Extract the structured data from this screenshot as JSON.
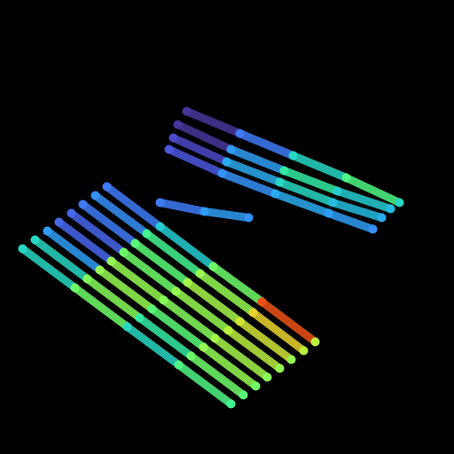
{
  "chart_data": {
    "type": "line",
    "tick_labels": false,
    "grid": false,
    "xlim": [
      0,
      512
    ],
    "ylim": [
      512,
      0
    ],
    "zlim": [
      0,
      1
    ],
    "series": [
      {
        "x": [
          120,
          180,
          240,
          295,
          355
        ],
        "y": [
          210,
          255,
          300,
          340,
          385
        ],
        "z": [
          0.15,
          0.28,
          0.45,
          0.82,
          0.55
        ]
      },
      {
        "x": [
          107,
          165,
          225,
          285,
          342
        ],
        "y": [
          220,
          263,
          308,
          352,
          395
        ],
        "z": [
          0.18,
          0.38,
          0.5,
          0.62,
          0.55
        ]
      },
      {
        "x": [
          93,
          152,
          211,
          270,
          328
        ],
        "y": [
          230,
          274,
          318,
          362,
          405
        ],
        "z": [
          0.15,
          0.42,
          0.52,
          0.58,
          0.5
        ]
      },
      {
        "x": [
          80,
          139,
          198,
          257,
          315
        ],
        "y": [
          240,
          284,
          328,
          372,
          415
        ],
        "z": [
          0.12,
          0.45,
          0.5,
          0.55,
          0.5
        ]
      },
      {
        "x": [
          66,
          125,
          184,
          242,
          301
        ],
        "y": [
          250,
          294,
          338,
          381,
          425
        ],
        "z": [
          0.12,
          0.5,
          0.48,
          0.52,
          0.48
        ]
      },
      {
        "x": [
          53,
          112,
          171,
          229,
          288
        ],
        "y": [
          260,
          304,
          348,
          391,
          435
        ],
        "z": [
          0.2,
          0.5,
          0.42,
          0.5,
          0.45
        ]
      },
      {
        "x": [
          39,
          98,
          157,
          215,
          274
        ],
        "y": [
          270,
          314,
          358,
          401,
          445
        ],
        "z": [
          0.3,
          0.48,
          0.35,
          0.45,
          0.42
        ]
      },
      {
        "x": [
          25,
          84,
          143,
          201,
          260
        ],
        "y": [
          280,
          324,
          368,
          411,
          455
        ],
        "z": [
          0.3,
          0.45,
          0.3,
          0.4,
          0.38
        ]
      },
      {
        "x": [
          210,
          270,
          330,
          390,
          450
        ],
        "y": [
          125,
          150,
          175,
          200,
          228
        ],
        "z": [
          0.05,
          0.15,
          0.3,
          0.4,
          0.3
        ]
      },
      {
        "x": [
          200,
          260,
          320,
          380,
          440
        ],
        "y": [
          140,
          168,
          192,
          215,
          235
        ],
        "z": [
          0.05,
          0.2,
          0.35,
          0.28,
          0.25
        ]
      },
      {
        "x": [
          195,
          255,
          315,
          375,
          430
        ],
        "y": [
          155,
          182,
          205,
          228,
          245
        ],
        "z": [
          0.08,
          0.22,
          0.3,
          0.25,
          0.22
        ]
      },
      {
        "x": [
          190,
          250,
          310,
          370,
          420
        ],
        "y": [
          168,
          195,
          218,
          240,
          258
        ],
        "z": [
          0.1,
          0.18,
          0.22,
          0.2,
          0.18
        ]
      },
      {
        "x": [
          180,
          230,
          280
        ],
        "y": [
          228,
          238,
          245
        ],
        "z": [
          0.15,
          0.2,
          0.18
        ]
      }
    ]
  }
}
